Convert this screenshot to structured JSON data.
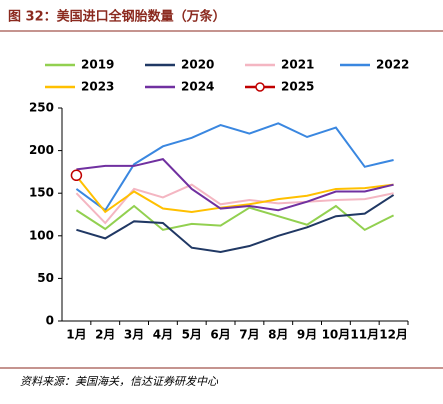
{
  "chart_data": {
    "type": "line",
    "title": "图 32：美国进口全钢胎数量（万条）",
    "source": "资料来源：美国海关，信达证券研发中心",
    "categories": [
      "1月",
      "2月",
      "3月",
      "4月",
      "5月",
      "6月",
      "7月",
      "8月",
      "9月",
      "10月",
      "11月",
      "12月"
    ],
    "ylim": [
      0,
      250
    ],
    "yticks": [
      0,
      50,
      100,
      150,
      200,
      250
    ],
    "grid": false,
    "series": [
      {
        "name": "2019",
        "color": "#92d050",
        "values": [
          130,
          108,
          135,
          107,
          114,
          112,
          133,
          123,
          113,
          135,
          107,
          124
        ]
      },
      {
        "name": "2020",
        "color": "#203864",
        "values": [
          107,
          97,
          117,
          115,
          86,
          81,
          88,
          100,
          110,
          123,
          126,
          148
        ]
      },
      {
        "name": "2021",
        "color": "#f4b6c2",
        "values": [
          150,
          115,
          155,
          145,
          160,
          137,
          142,
          138,
          140,
          142,
          143,
          150
        ]
      },
      {
        "name": "2022",
        "color": "#3a87e0",
        "values": [
          155,
          130,
          184,
          205,
          215,
          230,
          220,
          232,
          216,
          227,
          181,
          189
        ]
      },
      {
        "name": "2023",
        "color": "#ffc000",
        "values": [
          170,
          128,
          152,
          132,
          128,
          133,
          137,
          143,
          147,
          155,
          156,
          160
        ]
      },
      {
        "name": "2024",
        "color": "#7030a0",
        "values": [
          178,
          182,
          182,
          190,
          155,
          132,
          135,
          130,
          140,
          152,
          152,
          160
        ]
      },
      {
        "name": "2025",
        "color": "#c00000",
        "marker": "circle",
        "values": [
          171,
          null,
          null,
          null,
          null,
          null,
          null,
          null,
          null,
          null,
          null,
          null
        ]
      }
    ]
  }
}
